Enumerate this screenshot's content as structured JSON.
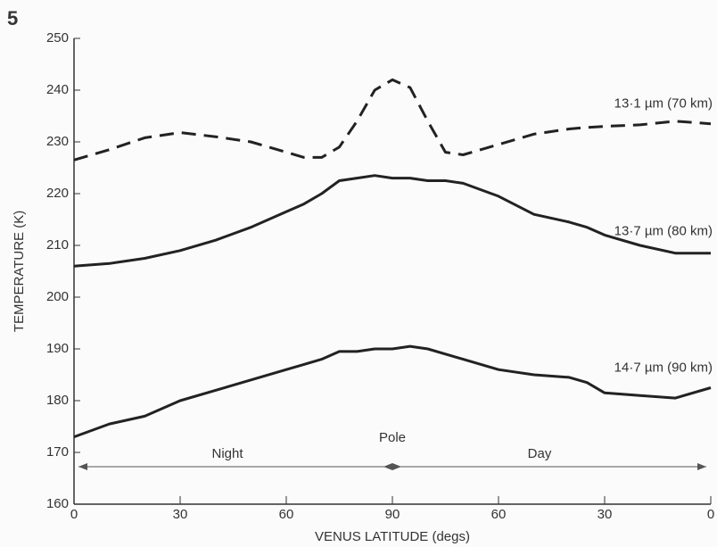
{
  "chart_data": {
    "type": "line",
    "figure_label": "5",
    "xlabel": "VENUS LATITUDE (degs)",
    "ylabel": "TEMPERATURE (K)",
    "annotations": [
      "Night",
      "Pole",
      "Day"
    ],
    "x": [
      0,
      10,
      20,
      30,
      40,
      50,
      60,
      65,
      70,
      75,
      80,
      85,
      90,
      95,
      100,
      105,
      110,
      120,
      130,
      140,
      145,
      150,
      160,
      170,
      180
    ],
    "series": [
      {
        "name": "13·1 µm (70 km)",
        "color": "#222222",
        "dashed": true,
        "values": [
          226.5,
          228.5,
          230.8,
          231.8,
          231,
          230,
          228,
          227,
          227,
          229,
          234,
          240,
          242,
          240.5,
          234,
          228,
          227.5,
          229.5,
          231.5,
          232.5,
          232.8,
          233,
          233.3,
          234,
          233.5
        ]
      },
      {
        "name": "13·7 µm (80 km)",
        "color": "#222222",
        "dashed": false,
        "values": [
          206,
          206.5,
          207.5,
          209,
          211,
          213.5,
          216.5,
          218,
          220,
          222.5,
          223,
          223.5,
          223,
          223,
          222.5,
          222.5,
          222,
          219.5,
          216,
          214.5,
          213.5,
          212,
          210,
          208.5,
          208.5
        ]
      },
      {
        "name": "14·7 µm (90 km)",
        "color": "#222222",
        "dashed": false,
        "values": [
          173,
          175.5,
          177,
          180,
          182,
          184,
          186,
          187,
          188,
          189.5,
          189.5,
          190,
          190,
          190.5,
          190,
          189,
          188,
          186,
          185,
          184.5,
          183.5,
          181.5,
          181,
          180.5,
          182.5
        ]
      }
    ],
    "xlim": [
      0,
      180
    ],
    "xticks": [
      0,
      30,
      60,
      90,
      {
        "value": 120,
        "label": "60"
      },
      {
        "value": 150,
        "label": "30"
      },
      {
        "value": 180,
        "label": "0"
      }
    ],
    "ylim": [
      160,
      250
    ],
    "yticks": [
      160,
      170,
      180,
      190,
      200,
      210,
      220,
      230,
      240,
      250
    ]
  }
}
